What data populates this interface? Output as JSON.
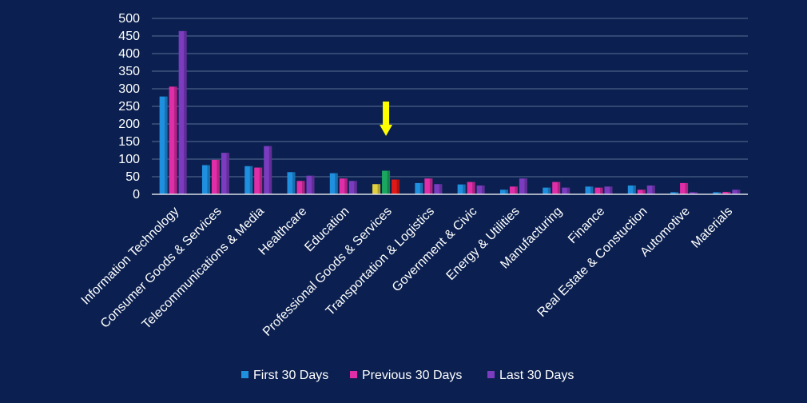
{
  "chart_data": {
    "type": "bar",
    "categories": [
      "Information Technology",
      "Consumer Goods & Services",
      "Telecommunications & Media",
      "Healthcare",
      "Education",
      "Professional Goods & Services",
      "Transportation & Logistics",
      "Government & Civic",
      "Energy & Utilities",
      "Manufacturing",
      "Finance",
      "Real Estate & Constuction",
      "Automotive",
      "Materials"
    ],
    "series": [
      {
        "name": "First 30 Days",
        "color": "#1f8fe0",
        "values": [
          278,
          83,
          80,
          63,
          60,
          29,
          32,
          28,
          13,
          19,
          22,
          25,
          6,
          6
        ]
      },
      {
        "name": "Previous 30 Days",
        "color": "#e02ea8",
        "values": [
          306,
          98,
          76,
          38,
          45,
          67,
          45,
          35,
          22,
          35,
          19,
          13,
          32,
          7
        ]
      },
      {
        "name": "Last 30 Days",
        "color": "#7b3cc0",
        "values": [
          464,
          118,
          137,
          53,
          38,
          42,
          29,
          25,
          45,
          19,
          22,
          25,
          6,
          13
        ]
      }
    ],
    "highlighted_bars": [
      {
        "category": "Professional Goods & Services",
        "colors": [
          "#e0d040",
          "#1aa860",
          "#e01818"
        ]
      }
    ],
    "annotation": {
      "type": "arrow",
      "color": "#ffff00",
      "points_to": "Professional Goods & Services"
    },
    "y_ticks": [
      0,
      50,
      100,
      150,
      200,
      250,
      300,
      350,
      400,
      450,
      500
    ],
    "ylim": [
      0,
      500
    ],
    "grid": true,
    "legend_position": "bottom"
  }
}
